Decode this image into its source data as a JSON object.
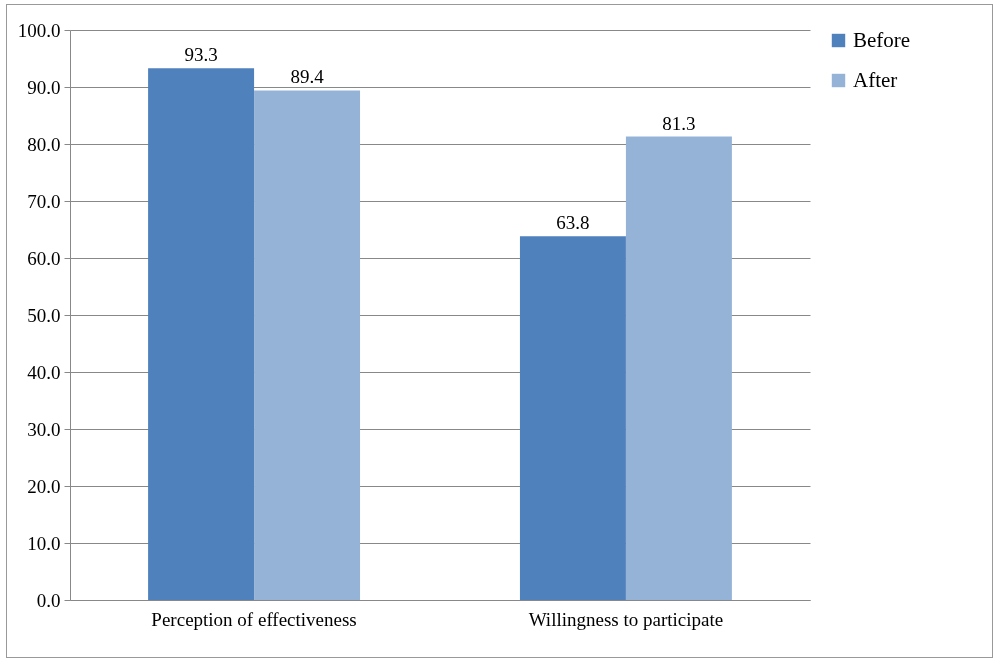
{
  "chart_data": {
    "type": "bar",
    "categories": [
      "Perception of effectiveness",
      "Willingness to participate"
    ],
    "series": [
      {
        "name": "Before",
        "color": "#4f81bd",
        "values": [
          93.3,
          63.8
        ]
      },
      {
        "name": "After",
        "color": "#95b3d7",
        "values": [
          89.4,
          81.3
        ]
      }
    ],
    "ylim": [
      0,
      100
    ],
    "yticks": [
      {
        "value": 0,
        "label": "0.0"
      },
      {
        "value": 10,
        "label": "10.0"
      },
      {
        "value": 20,
        "label": "20.0"
      },
      {
        "value": 30,
        "label": "30.0"
      },
      {
        "value": 40,
        "label": "40.0"
      },
      {
        "value": 50,
        "label": "50.0"
      },
      {
        "value": 60,
        "label": "60.0"
      },
      {
        "value": 70,
        "label": "70.0"
      },
      {
        "value": 80,
        "label": "80.0"
      },
      {
        "value": 90,
        "label": "90.0"
      },
      {
        "value": 100,
        "label": "100.0"
      }
    ],
    "grid": "y",
    "legend": "right",
    "data_labels": true
  }
}
